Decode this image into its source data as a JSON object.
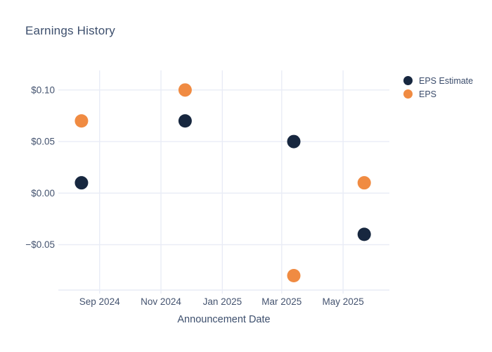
{
  "header": {
    "title": "Earnings History"
  },
  "colors": {
    "background": "#ffffff",
    "grid": "#e9ecf6",
    "axis_line": "#e9ecf6",
    "text": "#3d4f6d",
    "tick_text": "#44536f",
    "eps_estimate": "#17273f",
    "eps": "#f08b42"
  },
  "chart_data": {
    "type": "scatter",
    "title": "Earnings History",
    "xlabel": "Announcement Date",
    "ylabel": "",
    "grid": true,
    "legend_position": "top-right",
    "marker_diameter_px": 19,
    "x_range": [
      "2024-07-22",
      "2025-06-16"
    ],
    "y_range": [
      -0.094,
      0.119
    ],
    "x_ticks": [
      {
        "label": "Sep 2024",
        "date": "2024-09-01"
      },
      {
        "label": "Nov 2024",
        "date": "2024-11-01"
      },
      {
        "label": "Jan 2025",
        "date": "2025-01-01"
      },
      {
        "label": "Mar 2025",
        "date": "2025-03-01"
      },
      {
        "label": "May 2025",
        "date": "2025-05-01"
      }
    ],
    "y_ticks": [
      {
        "label": "$0.10",
        "value": 0.1
      },
      {
        "label": "$0.05",
        "value": 0.05
      },
      {
        "label": "$0.00",
        "value": 0.0
      },
      {
        "label": "−$0.05",
        "value": -0.05
      }
    ],
    "series": [
      {
        "name": "EPS Estimate",
        "color": "#17273f",
        "points": [
          {
            "x": "2024-08-14",
            "y": 0.01
          },
          {
            "x": "2024-11-25",
            "y": 0.07
          },
          {
            "x": "2025-03-13",
            "y": 0.05
          },
          {
            "x": "2025-05-22",
            "y": -0.04
          }
        ]
      },
      {
        "name": "EPS",
        "color": "#f08b42",
        "points": [
          {
            "x": "2024-08-14",
            "y": 0.07
          },
          {
            "x": "2024-11-25",
            "y": 0.1
          },
          {
            "x": "2025-03-13",
            "y": -0.08
          },
          {
            "x": "2025-05-22",
            "y": 0.01
          }
        ]
      }
    ]
  }
}
